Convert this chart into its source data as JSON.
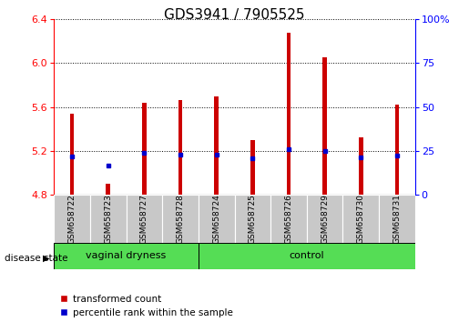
{
  "title": "GDS3941 / 7905525",
  "samples": [
    "GSM658722",
    "GSM658723",
    "GSM658727",
    "GSM658728",
    "GSM658724",
    "GSM658725",
    "GSM658726",
    "GSM658729",
    "GSM658730",
    "GSM658731"
  ],
  "bar_values": [
    5.54,
    4.9,
    5.64,
    5.66,
    5.7,
    5.3,
    6.28,
    6.05,
    5.32,
    5.62
  ],
  "blue_dot_values": [
    5.15,
    5.07,
    5.18,
    5.17,
    5.17,
    5.13,
    5.22,
    5.2,
    5.14,
    5.16
  ],
  "base_value": 4.8,
  "ylim": [
    4.8,
    6.4
  ],
  "yticks_left": [
    4.8,
    5.2,
    5.6,
    6.0,
    6.4
  ],
  "yticks_right": [
    0,
    25,
    50,
    75,
    100
  ],
  "group1_label": "vaginal dryness",
  "group1_count": 4,
  "group2_label": "control",
  "group2_count": 6,
  "disease_state_label": "disease state",
  "legend_red_label": "transformed count",
  "legend_blue_label": "percentile rank within the sample",
  "bar_color": "#cc0000",
  "dot_color": "#0000cc",
  "group_bg_color": "#55dd55",
  "tick_label_bg": "#c8c8c8",
  "title_fontsize": 11,
  "tick_fontsize": 8,
  "bar_width": 0.12
}
